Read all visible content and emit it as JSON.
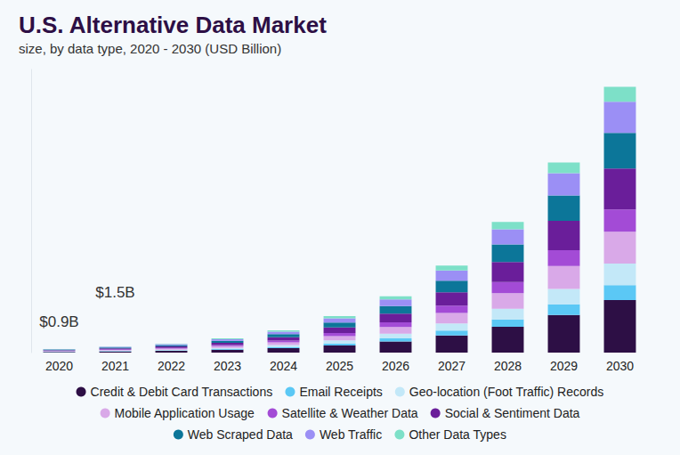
{
  "chart_data": {
    "type": "bar",
    "title": "U.S. Alternative Data Market",
    "subtitle": "size, by data type, 2020 - 2030 (USD Billion)",
    "categories": [
      "2020",
      "2021",
      "2022",
      "2023",
      "2024",
      "2025",
      "2026",
      "2027",
      "2028",
      "2029",
      "2030"
    ],
    "series": [
      {
        "name": "Credit & Debit Card Transactions",
        "color": "#2d0f45",
        "values": [
          0.18,
          0.3,
          0.44,
          0.69,
          1.09,
          1.78,
          2.75,
          4.26,
          6.4,
          9.3,
          13.0
        ]
      },
      {
        "name": "Email Receipts",
        "color": "#5bc8f5",
        "values": [
          0.05,
          0.08,
          0.12,
          0.2,
          0.31,
          0.5,
          0.78,
          1.2,
          1.81,
          2.63,
          3.7
        ]
      },
      {
        "name": "Geo-location (Foot Traffic) Records",
        "color": "#c3e8f8",
        "values": [
          0.07,
          0.12,
          0.18,
          0.28,
          0.45,
          0.73,
          1.13,
          1.74,
          2.62,
          3.81,
          5.3
        ]
      },
      {
        "name": "Mobile Application Usage",
        "color": "#d9a9e8",
        "values": [
          0.11,
          0.18,
          0.26,
          0.42,
          0.66,
          1.08,
          1.67,
          2.58,
          3.88,
          5.64,
          7.9
        ]
      },
      {
        "name": "Satellite & Weather Data",
        "color": "#a34bd6",
        "values": [
          0.08,
          0.13,
          0.18,
          0.29,
          0.46,
          0.76,
          1.17,
          1.81,
          2.71,
          3.95,
          5.5
        ]
      },
      {
        "name": "Social & Sentiment Data",
        "color": "#6a1e9a",
        "values": [
          0.14,
          0.23,
          0.34,
          0.54,
          0.85,
          1.39,
          2.14,
          3.31,
          4.97,
          7.24,
          10.1
        ]
      },
      {
        "name": "Web Scraped Data",
        "color": "#0c7699",
        "values": [
          0.12,
          0.2,
          0.29,
          0.47,
          0.74,
          1.21,
          1.86,
          2.88,
          4.33,
          6.3,
          8.8
        ]
      },
      {
        "name": "Web Traffic",
        "color": "#9b8ff5",
        "values": [
          0.1,
          0.18,
          0.26,
          0.41,
          0.64,
          1.05,
          1.63,
          2.52,
          3.78,
          5.5,
          7.7
        ]
      },
      {
        "name": "Other Data Types",
        "color": "#7de0c8",
        "values": [
          0.05,
          0.08,
          0.13,
          0.2,
          0.3,
          0.5,
          0.77,
          1.2,
          1.8,
          2.63,
          3.7
        ]
      }
    ],
    "annotations": [
      {
        "text": "$0.9B",
        "x": "2020",
        "y": 0.9
      },
      {
        "text": "$1.5B",
        "x": "2021",
        "y": 1.5
      }
    ],
    "ylim": [
      0,
      70
    ],
    "stacked": true,
    "grid": false,
    "legend": "bottom",
    "tick_labels": "x"
  }
}
